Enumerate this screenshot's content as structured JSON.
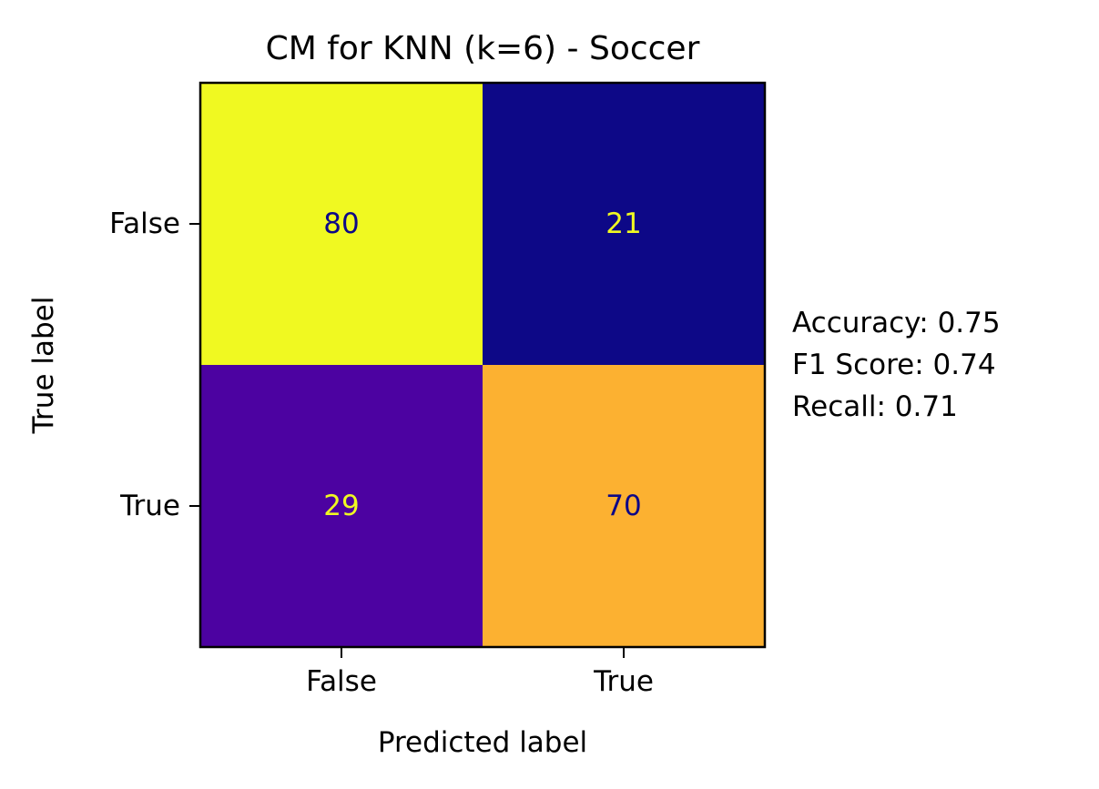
{
  "chart_data": {
    "type": "heatmap",
    "title": "CM for KNN (k=6) - Soccer",
    "xlabel": "Predicted label",
    "ylabel": "True label",
    "x_categories": [
      "False",
      "True"
    ],
    "y_categories": [
      "False",
      "True"
    ],
    "values": [
      [
        80,
        21
      ],
      [
        29,
        70
      ]
    ],
    "colormap": "plasma",
    "cell_colors": [
      [
        "#f0f921",
        "#0d0887"
      ],
      [
        "#4c02a1",
        "#fcb131"
      ]
    ],
    "text_colors": [
      [
        "#0d0887",
        "#f0f921"
      ],
      [
        "#f0f921",
        "#0d0887"
      ]
    ],
    "grid": false
  },
  "metrics": [
    {
      "label": "Accuracy",
      "text": "Accuracy: 0.75"
    },
    {
      "label": "F1 Score",
      "text": "F1 Score: 0.74"
    },
    {
      "label": "Recall",
      "text": "Recall: 0.71"
    }
  ]
}
